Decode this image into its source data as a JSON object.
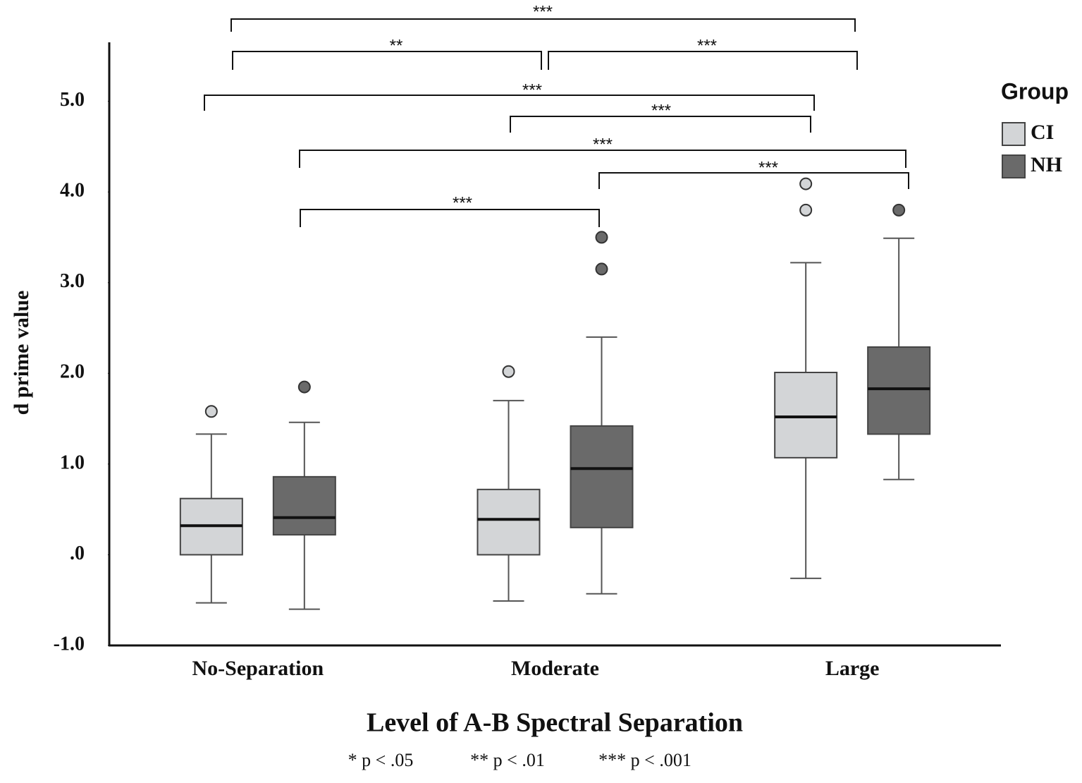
{
  "chart_data": {
    "type": "box",
    "y_label": "d prime value",
    "x_label": "Level of A-B Spectral Separation",
    "legend_title": "Group",
    "legend": "right",
    "categories": [
      "No-Separation",
      "Moderate",
      "Large"
    ],
    "ylim": [
      -1,
      5.65
    ],
    "yticks": [
      {
        "value": -1,
        "label": "-1.0"
      },
      {
        "value": 0,
        "label": ".0"
      },
      {
        "value": 1,
        "label": "1.0"
      },
      {
        "value": 2,
        "label": "2.0"
      },
      {
        "value": 3,
        "label": "3.0"
      },
      {
        "value": 4,
        "label": "4.0"
      },
      {
        "value": 5,
        "label": "5.0"
      }
    ],
    "series": [
      {
        "name": "CI",
        "color": "#d3d5d7",
        "values": [
          {
            "min": -0.53,
            "q1": 0,
            "median": 0.32,
            "q3": 0.62,
            "max": 1.33,
            "outliers": [
              1.58
            ]
          },
          {
            "min": -0.51,
            "q1": 0,
            "median": 0.39,
            "q3": 0.72,
            "max": 1.7,
            "outliers": [
              2.02
            ]
          },
          {
            "min": -0.26,
            "q1": 1.07,
            "median": 1.52,
            "q3": 2.01,
            "max": 3.22,
            "outliers": [
              3.8,
              4.09
            ]
          }
        ]
      },
      {
        "name": "NH",
        "color": "#6a6a6a",
        "values": [
          {
            "min": -0.6,
            "q1": 0.22,
            "median": 0.41,
            "q3": 0.86,
            "max": 1.46,
            "outliers": [
              1.85
            ]
          },
          {
            "min": -0.43,
            "q1": 0.3,
            "median": 0.95,
            "q3": 1.42,
            "max": 2.4,
            "outliers": [
              3.15,
              3.5
            ]
          },
          {
            "min": 0.83,
            "q1": 1.33,
            "median": 1.83,
            "q3": 2.29,
            "max": 3.49,
            "outliers": [
              3.8
            ]
          }
        ]
      }
    ],
    "significance": [
      "***",
      "**",
      "***",
      "***",
      "***",
      "***",
      "***",
      "***"
    ],
    "footnotes": [
      "* p < .05",
      "** p < .01",
      "*** p < .001"
    ]
  }
}
